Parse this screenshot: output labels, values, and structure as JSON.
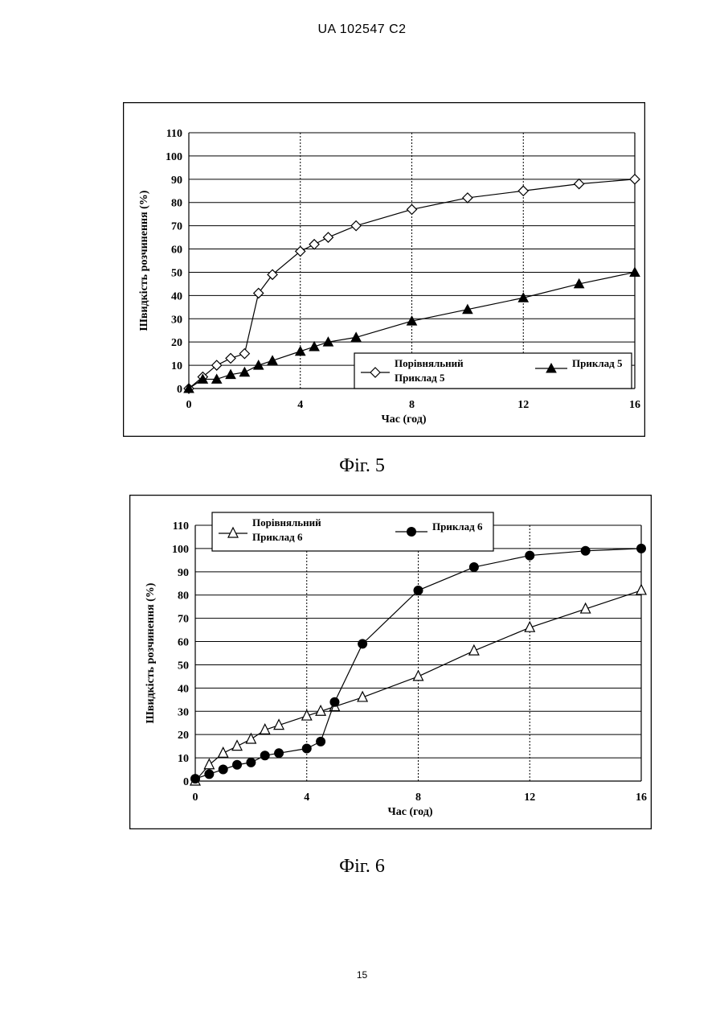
{
  "header": {
    "patent_number": "UA   102547   C2"
  },
  "page_number": "15",
  "chart_data": [
    {
      "type": "line",
      "caption": "Фіг. 5",
      "xlabel": "Час (год)",
      "ylabel": "Швидкість розчинення   (%)",
      "xlim": [
        0,
        16
      ],
      "ylim": [
        0,
        110
      ],
      "x_ticks": [
        0,
        4,
        8,
        12,
        16
      ],
      "y_ticks": [
        0,
        10,
        20,
        30,
        40,
        50,
        60,
        70,
        80,
        90,
        100,
        110
      ],
      "grid": "horizontal solid, vertical dashed",
      "legend_placement": "bottom-right",
      "series": [
        {
          "name_line1": "Порівняльний",
          "name_line2": "Приклад 5",
          "marker": "open-diamond",
          "x": [
            0,
            0.5,
            1,
            1.5,
            2,
            2.5,
            3,
            4,
            4.5,
            5,
            6,
            8,
            10,
            12,
            14,
            16
          ],
          "y": [
            0,
            5,
            10,
            13,
            15,
            41,
            49,
            59,
            62,
            65,
            70,
            77,
            82,
            85,
            88,
            90
          ]
        },
        {
          "name_line1": "Приклад 5",
          "name_line2": "",
          "marker": "filled-triangle",
          "x": [
            0,
            0.5,
            1,
            1.5,
            2,
            2.5,
            3,
            4,
            4.5,
            5,
            6,
            8,
            10,
            12,
            14,
            16
          ],
          "y": [
            0,
            4,
            4,
            6,
            7,
            10,
            12,
            16,
            18,
            20,
            22,
            29,
            34,
            39,
            45,
            50
          ]
        }
      ]
    },
    {
      "type": "line",
      "caption": "Фіг. 6",
      "xlabel": "Час (год)",
      "ylabel": "Швидкість розчинення (%)",
      "xlim": [
        0,
        16
      ],
      "ylim": [
        0,
        110
      ],
      "x_ticks": [
        0,
        4,
        8,
        12,
        16
      ],
      "y_ticks": [
        0,
        10,
        20,
        30,
        40,
        50,
        60,
        70,
        80,
        90,
        100,
        110
      ],
      "grid": "horizontal solid, vertical dashed",
      "legend_placement": "top-left",
      "series": [
        {
          "name_line1": "Порівняльний",
          "name_line2": "Приклад 6",
          "marker": "open-triangle",
          "x": [
            0,
            0.5,
            1,
            1.5,
            2,
            2.5,
            3,
            4,
            4.5,
            5,
            6,
            8,
            10,
            12,
            14,
            16
          ],
          "y": [
            0,
            7,
            12,
            15,
            18,
            22,
            24,
            28,
            30,
            32,
            36,
            45,
            56,
            66,
            74,
            82
          ]
        },
        {
          "name_line1": "Приклад 6",
          "name_line2": "",
          "marker": "filled-circle",
          "x": [
            0,
            0.5,
            1,
            1.5,
            2,
            2.5,
            3,
            4,
            4.5,
            5,
            6,
            8,
            10,
            12,
            14,
            16
          ],
          "y": [
            1,
            3,
            5,
            7,
            8,
            11,
            12,
            14,
            17,
            34,
            59,
            82,
            92,
            97,
            99,
            100
          ]
        }
      ]
    }
  ]
}
